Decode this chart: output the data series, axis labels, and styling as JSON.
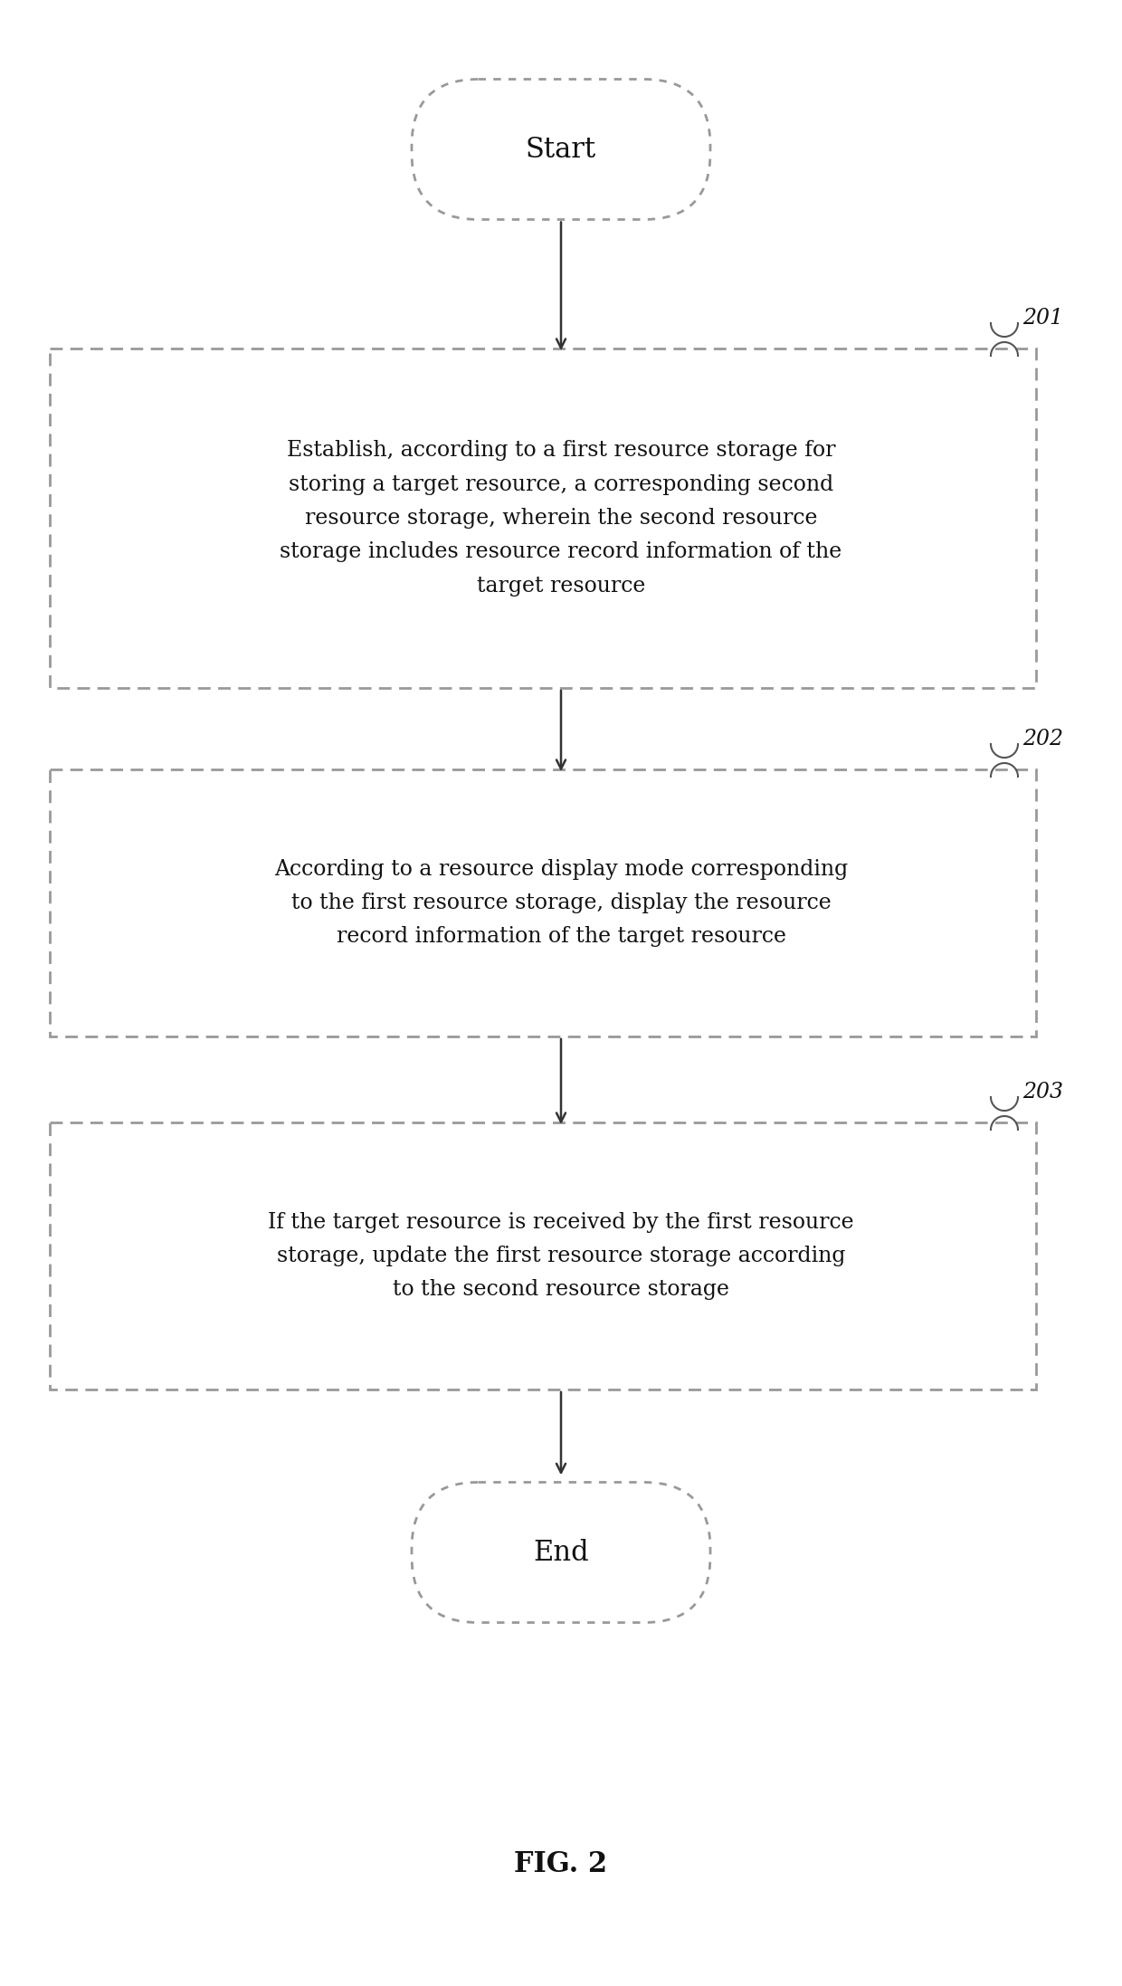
{
  "background_color": "#ffffff",
  "title": "FIG. 2",
  "start_label": "Start",
  "end_label": "End",
  "step_labels": [
    "Establish, according to a first resource storage for\nstoring a target resource, a corresponding second\nresource storage, wherein the second resource\nstorage includes resource record information of the\ntarget resource",
    "According to a resource display mode corresponding\nto the first resource storage, display the resource\nrecord information of the target resource",
    "If the target resource is received by the first resource\nstorage, update the first resource storage according\nto the second resource storage"
  ],
  "step_numbers": [
    "201",
    "202",
    "203"
  ],
  "box_line_color": "#999999",
  "arrow_color": "#333333",
  "text_color": "#111111",
  "font_size": 17,
  "title_font_size": 20,
  "step_num_font_size": 17
}
